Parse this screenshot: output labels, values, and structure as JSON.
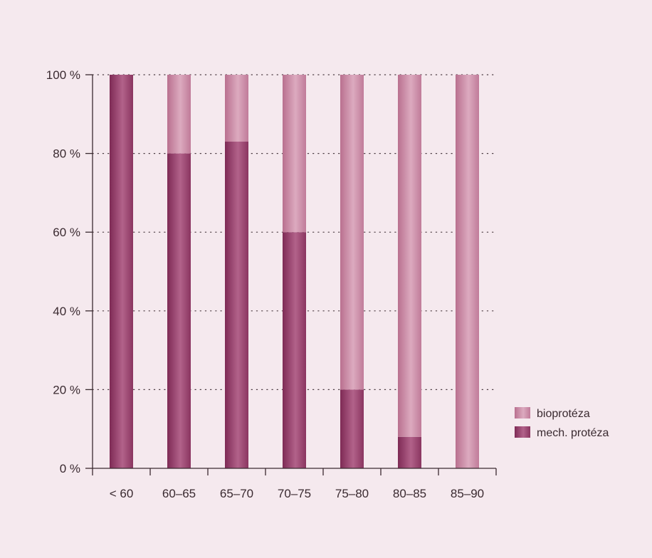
{
  "chart_data": {
    "type": "bar",
    "stacked": true,
    "categories": [
      "< 60",
      "60–65",
      "65–70",
      "70–75",
      "75–80",
      "80–85",
      "85–90"
    ],
    "series": [
      {
        "name": "mech. protéza",
        "values": [
          100,
          80,
          83,
          60,
          20,
          8,
          0
        ],
        "color": "#963f6b"
      },
      {
        "name": "bioprotéza",
        "values": [
          0,
          20,
          17,
          40,
          80,
          92,
          100
        ],
        "color": "#c77d9e"
      }
    ],
    "yticks": [
      "0 %",
      "20 %",
      "40 %",
      "60 %",
      "80 %",
      "100 %"
    ],
    "ytick_values": [
      0,
      20,
      40,
      60,
      80,
      100
    ],
    "ylim": [
      0,
      100
    ],
    "grid": true,
    "legend": {
      "placement": "right",
      "entries": [
        "bioprotéza",
        "mech. protéza"
      ]
    }
  }
}
